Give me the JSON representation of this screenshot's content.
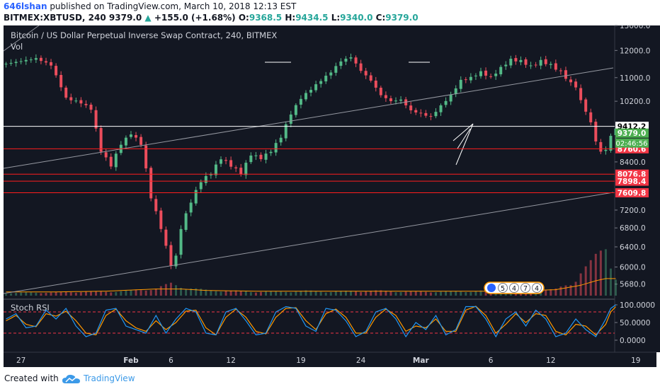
{
  "header": {
    "author": "646lshan",
    "published_text": " published on TradingView.com, March 10, 2018 12:13 EST",
    "symbol": "BITMEX:XBTUSD, 240",
    "last": "9379.0",
    "change": "+155.0 (+1.68%)",
    "o_label": "O:",
    "o": "9368.5",
    "h_label": "H:",
    "h": "9434.5",
    "l_label": "L:",
    "l": "9340.0",
    "c_label": "C:",
    "c": "9379.0"
  },
  "footer": {
    "created_with": "Created with",
    "brand": "TradingView"
  },
  "chart_data": {
    "type": "candlestick",
    "title": "Bitcoin / US Dollar Perpetual Inverse Swap Contract, 240, BITMEX",
    "volume_label": "Vol",
    "yscale": "log",
    "ylim": [
      5450,
      13000
    ],
    "y_ticks": [
      13000,
      12000,
      11000,
      10200,
      8400,
      7200,
      6800,
      6400,
      6000,
      5680
    ],
    "y_tick_labels": [
      "13000.0",
      "12000.0",
      "11000.0",
      "10200.0",
      "8400.0",
      "7200.0",
      "6800.0",
      "6400.0",
      "6000.0",
      "5680.0"
    ],
    "x_ticks": [
      "27",
      "Feb",
      "6",
      "12",
      "19",
      "24",
      "Mar",
      "6",
      "12",
      "19"
    ],
    "price_path": [
      [
        0,
        11500
      ],
      [
        3,
        11600
      ],
      [
        6,
        11700
      ],
      [
        9,
        11450
      ],
      [
        12,
        10300
      ],
      [
        15,
        10150
      ],
      [
        17,
        9950
      ],
      [
        19,
        8700
      ],
      [
        21,
        8300
      ],
      [
        23,
        8900
      ],
      [
        25,
        9200
      ],
      [
        27,
        8900
      ],
      [
        29,
        7500
      ],
      [
        31,
        6800
      ],
      [
        32.5,
        6200
      ],
      [
        33.5,
        5900
      ],
      [
        35,
        6800
      ],
      [
        37,
        7400
      ],
      [
        39,
        7900
      ],
      [
        41,
        8100
      ],
      [
        43,
        8500
      ],
      [
        45,
        8300
      ],
      [
        47,
        8100
      ],
      [
        49,
        8600
      ],
      [
        51,
        8500
      ],
      [
        53,
        8700
      ],
      [
        55,
        9100
      ],
      [
        57,
        9800
      ],
      [
        59,
        10300
      ],
      [
        61,
        10600
      ],
      [
        63,
        10900
      ],
      [
        65,
        11200
      ],
      [
        67,
        11600
      ],
      [
        69,
        11750
      ],
      [
        71,
        11250
      ],
      [
        73,
        10900
      ],
      [
        75,
        10400
      ],
      [
        77,
        10200
      ],
      [
        79,
        10250
      ],
      [
        81,
        9900
      ],
      [
        83,
        9800
      ],
      [
        85,
        9700
      ],
      [
        87,
        10050
      ],
      [
        89,
        10400
      ],
      [
        91,
        10900
      ],
      [
        93,
        11000
      ],
      [
        95,
        11200
      ],
      [
        97,
        11000
      ],
      [
        99,
        11350
      ],
      [
        101,
        11650
      ],
      [
        103,
        11600
      ],
      [
        105,
        11400
      ],
      [
        107,
        11600
      ],
      [
        109,
        11450
      ],
      [
        111,
        11200
      ],
      [
        113,
        10800
      ],
      [
        114,
        10700
      ],
      [
        115,
        10200
      ],
      [
        116,
        9900
      ],
      [
        117,
        9500
      ],
      [
        118,
        9000
      ],
      [
        119,
        8650
      ],
      [
        120,
        8760
      ],
      [
        121,
        9100
      ],
      [
        122,
        9379
      ]
    ],
    "volume_series": [
      [
        0,
        3
      ],
      [
        5,
        4
      ],
      [
        10,
        4
      ],
      [
        15,
        5
      ],
      [
        20,
        5
      ],
      [
        25,
        6
      ],
      [
        30,
        9
      ],
      [
        33,
        15
      ],
      [
        36,
        10
      ],
      [
        40,
        7
      ],
      [
        45,
        6
      ],
      [
        50,
        5
      ],
      [
        55,
        5
      ],
      [
        60,
        6
      ],
      [
        65,
        5
      ],
      [
        70,
        6
      ],
      [
        75,
        6
      ],
      [
        80,
        5
      ],
      [
        85,
        5
      ],
      [
        90,
        5
      ],
      [
        95,
        6
      ],
      [
        100,
        7
      ],
      [
        105,
        6
      ],
      [
        110,
        8
      ],
      [
        113,
        15
      ],
      [
        115,
        30
      ],
      [
        117,
        40
      ],
      [
        119,
        55
      ],
      [
        120,
        65
      ],
      [
        121,
        45
      ],
      [
        122,
        22
      ]
    ],
    "volume_ma": [
      [
        0,
        5
      ],
      [
        10,
        5
      ],
      [
        20,
        6
      ],
      [
        30,
        9
      ],
      [
        35,
        9
      ],
      [
        40,
        7
      ],
      [
        50,
        6
      ],
      [
        60,
        6
      ],
      [
        70,
        6
      ],
      [
        80,
        6
      ],
      [
        90,
        6
      ],
      [
        100,
        6
      ],
      [
        110,
        8
      ],
      [
        115,
        14
      ],
      [
        118,
        20
      ],
      [
        120,
        23
      ],
      [
        122,
        23
      ]
    ],
    "price_levels": [
      {
        "value": 9412.2,
        "label": "9412.2",
        "color": "#ffffff",
        "text_color": "#000000"
      },
      {
        "value": 9379.0,
        "label": "9379.0",
        "color": "#4caf50",
        "text_color": "#ffffff"
      },
      {
        "value": 8760.6,
        "label": "8760.6",
        "color": "#f23645",
        "text_color": "#ffffff"
      },
      {
        "value": 8076.8,
        "label": "8076.8",
        "color": "#f23645",
        "text_color": "#ffffff"
      },
      {
        "value": 7898.4,
        "label": "7898.4",
        "color": "#f23645",
        "text_color": "#ffffff"
      },
      {
        "value": 7609.8,
        "label": "7609.8",
        "color": "#f23645",
        "text_color": "#ffffff"
      }
    ],
    "countdown_label": "02:46:56",
    "event_markers": [
      "5",
      "4",
      "7",
      "4"
    ],
    "stoch_rsi": {
      "title": "Stoch RSI",
      "y_ticks": [
        100,
        50,
        0
      ],
      "y_tick_labels": [
        "100.0000",
        "50.0000",
        "0.0000"
      ],
      "bands": [
        80,
        20
      ],
      "k": [
        [
          0,
          60
        ],
        [
          2,
          75
        ],
        [
          4,
          35
        ],
        [
          6,
          40
        ],
        [
          8,
          85
        ],
        [
          10,
          60
        ],
        [
          12,
          90
        ],
        [
          14,
          40
        ],
        [
          16,
          10
        ],
        [
          18,
          20
        ],
        [
          20,
          85
        ],
        [
          22,
          90
        ],
        [
          24,
          40
        ],
        [
          26,
          30
        ],
        [
          28,
          20
        ],
        [
          30,
          70
        ],
        [
          32,
          20
        ],
        [
          34,
          60
        ],
        [
          36,
          90
        ],
        [
          38,
          80
        ],
        [
          40,
          20
        ],
        [
          42,
          15
        ],
        [
          44,
          80
        ],
        [
          46,
          90
        ],
        [
          48,
          55
        ],
        [
          50,
          15
        ],
        [
          52,
          20
        ],
        [
          54,
          80
        ],
        [
          56,
          95
        ],
        [
          58,
          90
        ],
        [
          60,
          40
        ],
        [
          62,
          25
        ],
        [
          64,
          90
        ],
        [
          66,
          85
        ],
        [
          68,
          55
        ],
        [
          70,
          10
        ],
        [
          72,
          25
        ],
        [
          74,
          80
        ],
        [
          76,
          90
        ],
        [
          78,
          60
        ],
        [
          80,
          10
        ],
        [
          82,
          50
        ],
        [
          84,
          30
        ],
        [
          86,
          70
        ],
        [
          88,
          15
        ],
        [
          90,
          30
        ],
        [
          92,
          95
        ],
        [
          94,
          95
        ],
        [
          96,
          60
        ],
        [
          98,
          10
        ],
        [
          100,
          60
        ],
        [
          102,
          80
        ],
        [
          104,
          40
        ],
        [
          106,
          85
        ],
        [
          108,
          60
        ],
        [
          110,
          10
        ],
        [
          112,
          20
        ],
        [
          114,
          60
        ],
        [
          116,
          30
        ],
        [
          118,
          10
        ],
        [
          120,
          60
        ],
        [
          121,
          90
        ],
        [
          122,
          100
        ]
      ],
      "d": [
        [
          0,
          55
        ],
        [
          2,
          70
        ],
        [
          4,
          45
        ],
        [
          6,
          38
        ],
        [
          8,
          75
        ],
        [
          10,
          68
        ],
        [
          12,
          82
        ],
        [
          14,
          55
        ],
        [
          16,
          20
        ],
        [
          18,
          15
        ],
        [
          20,
          70
        ],
        [
          22,
          88
        ],
        [
          24,
          55
        ],
        [
          26,
          35
        ],
        [
          28,
          25
        ],
        [
          30,
          55
        ],
        [
          32,
          30
        ],
        [
          34,
          50
        ],
        [
          36,
          82
        ],
        [
          38,
          85
        ],
        [
          40,
          35
        ],
        [
          42,
          15
        ],
        [
          44,
          65
        ],
        [
          46,
          88
        ],
        [
          48,
          65
        ],
        [
          50,
          25
        ],
        [
          52,
          18
        ],
        [
          54,
          65
        ],
        [
          56,
          90
        ],
        [
          58,
          92
        ],
        [
          60,
          55
        ],
        [
          62,
          30
        ],
        [
          64,
          75
        ],
        [
          66,
          88
        ],
        [
          68,
          65
        ],
        [
          70,
          20
        ],
        [
          72,
          20
        ],
        [
          74,
          65
        ],
        [
          76,
          88
        ],
        [
          78,
          70
        ],
        [
          80,
          25
        ],
        [
          82,
          40
        ],
        [
          84,
          35
        ],
        [
          86,
          60
        ],
        [
          88,
          25
        ],
        [
          90,
          25
        ],
        [
          92,
          85
        ],
        [
          94,
          96
        ],
        [
          96,
          70
        ],
        [
          98,
          20
        ],
        [
          100,
          45
        ],
        [
          102,
          75
        ],
        [
          104,
          50
        ],
        [
          106,
          75
        ],
        [
          108,
          70
        ],
        [
          110,
          25
        ],
        [
          112,
          15
        ],
        [
          114,
          45
        ],
        [
          116,
          40
        ],
        [
          118,
          15
        ],
        [
          120,
          45
        ],
        [
          121,
          80
        ],
        [
          122,
          95
        ]
      ]
    },
    "colors": {
      "background": "#131722",
      "up": "#53b987",
      "down": "#eb4d5c",
      "level_line": "#ff1e1e",
      "trend_line": "#9598a1",
      "k_line": "#2196f3",
      "d_line": "#ff9800",
      "band": "#f23645"
    }
  }
}
